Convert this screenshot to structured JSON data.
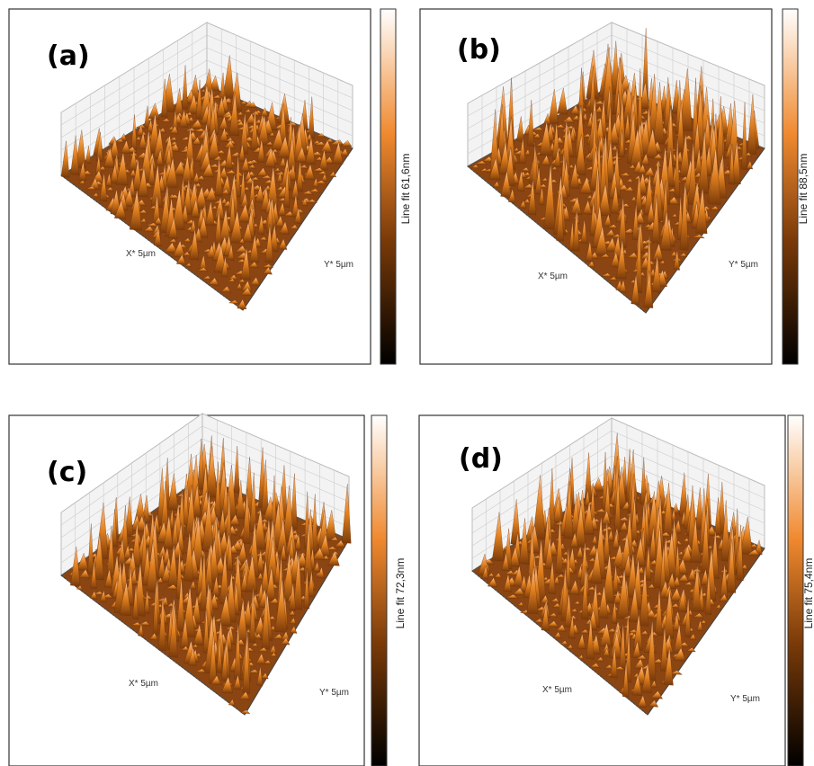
{
  "panels": [
    {
      "label": "(a)",
      "colorbar_label": "Line fit 61,6nm",
      "x_axis_label": "X* 5µm",
      "y_axis_label": "Y* 5µm"
    },
    {
      "label": "(b)",
      "colorbar_label": "Line fit 88,5nm",
      "x_axis_label": "X* 5µm",
      "y_axis_label": "Y* 5µm"
    },
    {
      "label": "(c)",
      "colorbar_label": "Line fit 72,3nm",
      "x_axis_label": "X* 5µm",
      "y_axis_label": "Y* 5µm"
    },
    {
      "label": "(d)",
      "colorbar_label": "Line fit 75,4nm",
      "x_axis_label": "X* 5µm",
      "y_axis_label": "Y* 5µm"
    }
  ]
}
